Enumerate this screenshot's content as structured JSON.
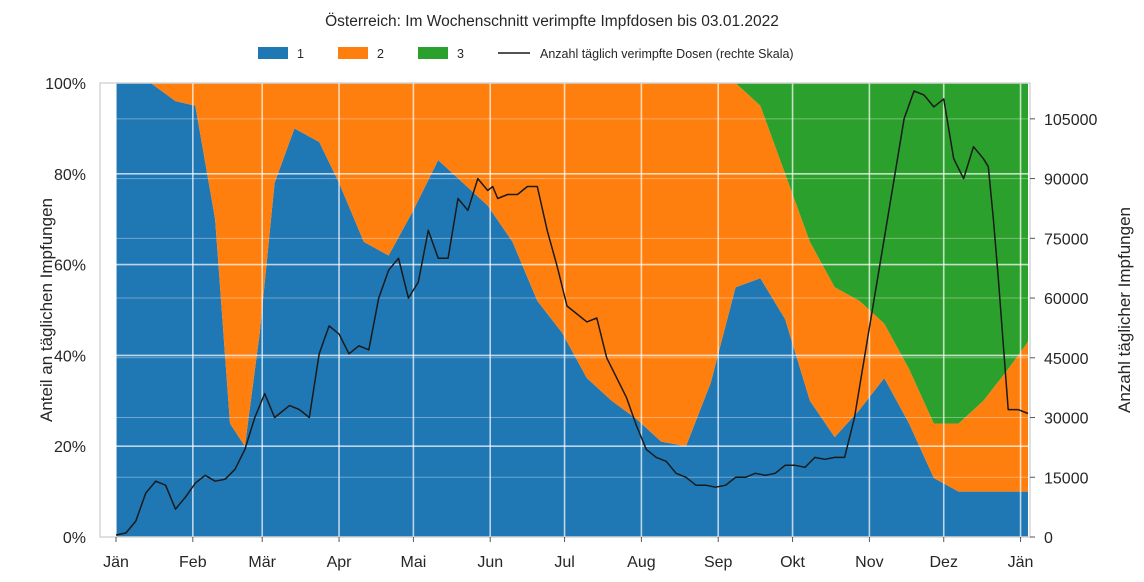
{
  "chart_data": {
    "type": "area",
    "title": "Österreich: Im Wochenschnitt verimpfte Impfdosen bis 03.01.2022",
    "ylabel_left": "Anteil an täglichen Impfungen",
    "ylabel_right": "Anzahl täglicher Impfungen",
    "x_ticks": [
      "Jän",
      "Feb",
      "Mär",
      "Apr",
      "Mai",
      "Jun",
      "Jul",
      "Aug",
      "Sep",
      "Okt",
      "Nov",
      "Dez",
      "Jän"
    ],
    "y_left_ticks": [
      "0%",
      "20%",
      "40%",
      "60%",
      "80%",
      "100%"
    ],
    "y_left_lim": [
      0,
      100
    ],
    "y_right_ticks": [
      "0",
      "15000",
      "30000",
      "45000",
      "60000",
      "75000",
      "90000",
      "105000"
    ],
    "y_right_lim": [
      0,
      114000
    ],
    "grid": true,
    "legend_position": "top",
    "x_days": [
      0,
      8,
      14,
      24,
      32,
      40,
      46,
      52,
      58,
      64,
      72,
      82,
      90,
      100,
      110,
      120,
      130,
      140,
      150,
      160,
      170,
      180,
      190,
      200,
      210,
      220,
      230,
      240,
      250,
      260,
      270,
      280,
      290,
      300,
      310,
      320,
      330,
      340,
      350,
      360,
      368
    ],
    "series": [
      {
        "name": "1",
        "color": "#1f77b4",
        "values": [
          100,
          100,
          100,
          96,
          95,
          70,
          25,
          20,
          45,
          78,
          90,
          87,
          78,
          65,
          62,
          72,
          83,
          78,
          73,
          65,
          52,
          45,
          35,
          30,
          26,
          21,
          20,
          34,
          55,
          57,
          48,
          30,
          22,
          28,
          35,
          25,
          13,
          10,
          10,
          10,
          10
        ]
      },
      {
        "name": "2",
        "color": "#ff7f0e",
        "values": [
          0,
          0,
          0,
          4,
          5,
          30,
          75,
          80,
          55,
          22,
          10,
          13,
          22,
          35,
          38,
          28,
          17,
          22,
          27,
          35,
          48,
          55,
          65,
          70,
          74,
          79,
          80,
          66,
          45,
          38,
          32,
          35,
          33,
          24,
          12,
          12,
          12,
          15,
          20,
          27,
          33
        ]
      },
      {
        "name": "3",
        "color": "#2ca02c",
        "values": [
          0,
          0,
          0,
          0,
          0,
          0,
          0,
          0,
          0,
          0,
          0,
          0,
          0,
          0,
          0,
          0,
          0,
          0,
          0,
          0,
          0,
          0,
          0,
          0,
          0,
          0,
          0,
          0,
          0,
          5,
          20,
          35,
          45,
          48,
          53,
          63,
          75,
          75,
          70,
          63,
          57
        ]
      }
    ],
    "line": {
      "name": "Anzahl täglich verimpfte Dosen (rechte Skala)",
      "color": "#1a1a1a",
      "x": [
        0,
        4,
        8,
        12,
        16,
        20,
        24,
        28,
        32,
        36,
        40,
        44,
        48,
        52,
        56,
        60,
        64,
        70,
        74,
        78,
        82,
        86,
        90,
        94,
        98,
        102,
        106,
        110,
        114,
        118,
        122,
        126,
        130,
        134,
        138,
        142,
        146,
        150,
        152,
        154,
        158,
        162,
        166,
        170,
        174,
        178,
        182,
        186,
        190,
        194,
        198,
        202,
        206,
        210,
        214,
        218,
        222,
        226,
        230,
        234,
        238,
        242,
        246,
        250,
        254,
        258,
        262,
        266,
        270,
        274,
        278,
        282,
        286,
        290,
        294,
        298,
        302,
        306,
        310,
        314,
        318,
        322,
        326,
        330,
        334,
        338,
        342,
        346,
        350,
        352,
        354,
        356,
        360,
        364,
        368
      ],
      "values": [
        500,
        1000,
        4000,
        11000,
        14000,
        13000,
        7000,
        10000,
        13500,
        15500,
        14000,
        14500,
        17000,
        22000,
        30000,
        36000,
        30000,
        33000,
        32000,
        30000,
        46000,
        53000,
        51000,
        46000,
        48000,
        47000,
        60000,
        67000,
        70000,
        60000,
        64000,
        77000,
        70000,
        70000,
        85000,
        82000,
        90000,
        87000,
        88000,
        85000,
        86000,
        86000,
        88000,
        88000,
        77000,
        68000,
        58000,
        56000,
        54000,
        55000,
        45000,
        40000,
        35000,
        28000,
        22000,
        20000,
        19000,
        16000,
        15000,
        13000,
        13000,
        12500,
        13000,
        15000,
        15000,
        16000,
        15500,
        16000,
        18000,
        18000,
        17500,
        20000,
        19500,
        20000,
        20000,
        30000,
        45000,
        60000,
        75000,
        90000,
        105000,
        112000,
        111000,
        108000,
        110000,
        95000,
        90000,
        98000,
        95000,
        93000,
        80000,
        65000,
        32000,
        32000,
        31000
      ]
    }
  }
}
